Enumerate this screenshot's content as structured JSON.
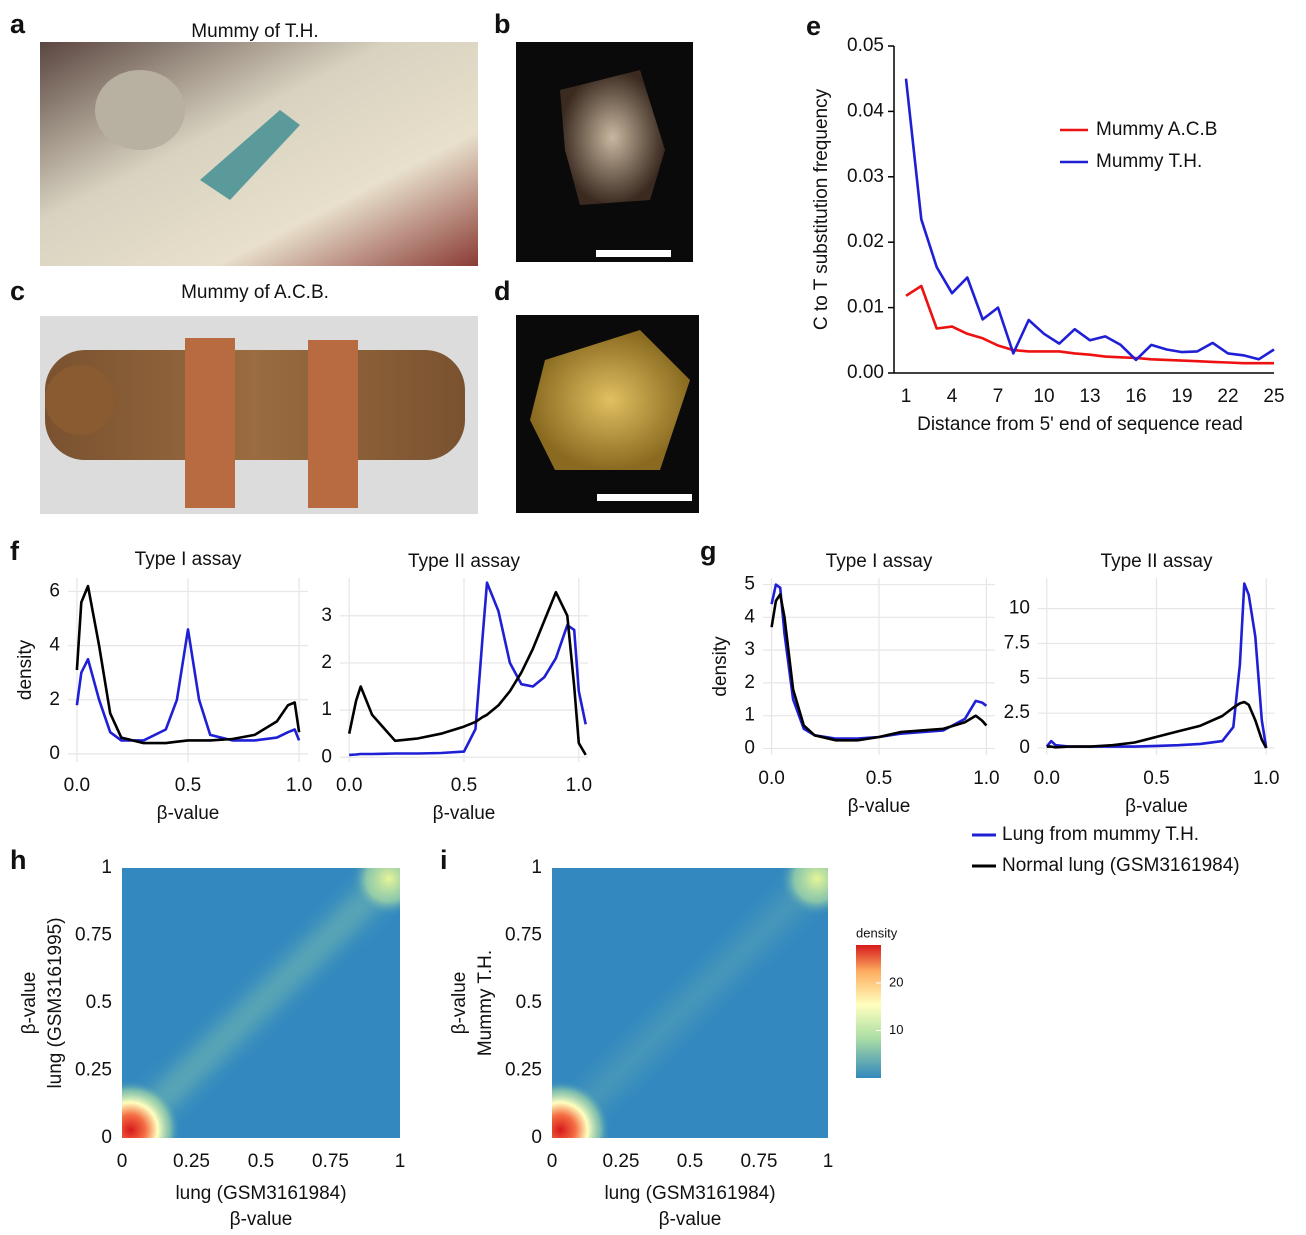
{
  "panels": {
    "a": {
      "label": "a",
      "caption": "Mummy of T.H."
    },
    "b": {
      "label": "b"
    },
    "c": {
      "label": "c",
      "caption": "Mummy of A.C.B."
    },
    "d": {
      "label": "d"
    },
    "e": {
      "label": "e"
    },
    "f": {
      "label": "f"
    },
    "g": {
      "label": "g"
    },
    "h": {
      "label": "h"
    },
    "i": {
      "label": "i"
    }
  },
  "legend": [
    {
      "name": "Lung from mummy T.H.",
      "color": "#1f1fd6"
    },
    {
      "name": "Normal lung (GSM3161984)",
      "color": "#000000"
    }
  ],
  "chart_data": [
    {
      "type": "line",
      "xlabel": "Distance from 5' end of sequence read",
      "ylabel": "C to T substitution frequency",
      "grid": false,
      "x": [
        1,
        2,
        3,
        4,
        5,
        6,
        7,
        8,
        9,
        10,
        11,
        12,
        13,
        14,
        15,
        16,
        17,
        18,
        19,
        20,
        21,
        22,
        23,
        24,
        25
      ],
      "xlim": [
        1,
        25
      ],
      "xticks": [
        1,
        4,
        7,
        10,
        13,
        16,
        19,
        22,
        25
      ],
      "ylim": [
        0,
        0.05
      ],
      "yticks": [
        {
          "value": 0,
          "label": "0.00"
        },
        {
          "value": 0.01,
          "label": "0.01"
        },
        {
          "value": 0.02,
          "label": "0.02"
        },
        {
          "value": 0.03,
          "label": "0.03"
        },
        {
          "value": 0.04,
          "label": "0.04"
        },
        {
          "value": 0.05,
          "label": "0.05"
        }
      ],
      "legend_position": "upper right",
      "series": [
        {
          "name": "Mummy A.C.B",
          "color": "#ee1111",
          "values": [
            0.0118,
            0.0133,
            0.0068,
            0.0071,
            0.006,
            0.0053,
            0.0042,
            0.0035,
            0.0033,
            0.0033,
            0.0033,
            0.003,
            0.0028,
            0.0025,
            0.0024,
            0.0023,
            0.0021,
            0.002,
            0.0019,
            0.0018,
            0.0017,
            0.0016,
            0.0015,
            0.0015,
            0.0015
          ]
        },
        {
          "name": "Mummy T.H.",
          "color": "#1f1fd6",
          "values": [
            0.045,
            0.0235,
            0.0162,
            0.0122,
            0.0146,
            0.0082,
            0.01,
            0.003,
            0.0081,
            0.006,
            0.0045,
            0.0067,
            0.005,
            0.0056,
            0.0043,
            0.002,
            0.0043,
            0.0036,
            0.0032,
            0.0033,
            0.0046,
            0.003,
            0.0027,
            0.0021,
            0.0036
          ]
        }
      ]
    },
    {
      "type": "line",
      "title": "Type I assay",
      "xlabel": "β-value",
      "ylabel": "density",
      "grid": true,
      "x": [
        0,
        0.02,
        0.05,
        0.1,
        0.15,
        0.2,
        0.3,
        0.4,
        0.45,
        0.5,
        0.55,
        0.6,
        0.7,
        0.8,
        0.9,
        0.95,
        0.98,
        1.0
      ],
      "xlim": [
        -0.04,
        1.04
      ],
      "xticks": [
        {
          "value": 0,
          "label": "0.0"
        },
        0.5,
        {
          "value": 1,
          "label": "1.0"
        }
      ],
      "ylim": [
        -0.3,
        6.5
      ],
      "yticks": [
        0,
        2,
        4,
        6
      ],
      "series": [
        {
          "color": "#1f1fd6",
          "values": [
            1.8,
            3.0,
            3.5,
            2.0,
            0.8,
            0.5,
            0.5,
            0.9,
            2.0,
            4.6,
            2.0,
            0.7,
            0.5,
            0.5,
            0.6,
            0.8,
            0.9,
            0.5
          ]
        },
        {
          "color": "#000000",
          "values": [
            3.1,
            5.6,
            6.2,
            4.0,
            1.5,
            0.6,
            0.4,
            0.4,
            0.45,
            0.5,
            0.5,
            0.5,
            0.55,
            0.7,
            1.2,
            1.8,
            1.9,
            0.8
          ]
        }
      ]
    },
    {
      "type": "line",
      "title": "Type II assay",
      "xlabel": "β-value",
      "grid": true,
      "x": [
        0,
        0.03,
        0.05,
        0.1,
        0.2,
        0.3,
        0.4,
        0.5,
        0.55,
        0.58,
        0.6,
        0.65,
        0.7,
        0.75,
        0.8,
        0.85,
        0.9,
        0.95,
        0.98,
        1.0,
        1.03
      ],
      "xlim": [
        -0.04,
        1.04
      ],
      "xticks": [
        {
          "value": 0,
          "label": "0.0"
        },
        0.5,
        {
          "value": 1,
          "label": "1.0"
        }
      ],
      "ylim": [
        -0.1,
        3.8
      ],
      "yticks": [
        0,
        1,
        2,
        3
      ],
      "series": [
        {
          "color": "#1f1fd6",
          "values": [
            0.05,
            0.06,
            0.07,
            0.07,
            0.08,
            0.08,
            0.09,
            0.12,
            0.6,
            2.5,
            3.7,
            3.1,
            2.0,
            1.55,
            1.5,
            1.7,
            2.1,
            2.8,
            2.7,
            1.4,
            0.7
          ]
        },
        {
          "color": "#000000",
          "values": [
            0.5,
            1.2,
            1.5,
            0.9,
            0.35,
            0.4,
            0.5,
            0.65,
            0.75,
            0.85,
            0.9,
            1.1,
            1.4,
            1.8,
            2.3,
            2.9,
            3.5,
            3.0,
            1.5,
            0.3,
            0.05
          ]
        }
      ]
    },
    {
      "type": "line",
      "title": "Type I assay",
      "xlabel": "β-value",
      "ylabel": "density",
      "grid": true,
      "x": [
        0,
        0.02,
        0.04,
        0.06,
        0.1,
        0.15,
        0.2,
        0.3,
        0.4,
        0.5,
        0.6,
        0.7,
        0.8,
        0.9,
        0.95,
        0.98,
        1.0
      ],
      "xlim": [
        -0.04,
        1.04
      ],
      "xticks": [
        {
          "value": 0,
          "label": "0.0"
        },
        0.5,
        {
          "value": 1,
          "label": "1.0"
        }
      ],
      "ylim": [
        -0.2,
        5.2
      ],
      "yticks": [
        0,
        1,
        2,
        3,
        4,
        5
      ],
      "series": [
        {
          "color": "#1f1fd6",
          "values": [
            4.4,
            5.0,
            4.9,
            3.5,
            1.5,
            0.6,
            0.4,
            0.3,
            0.3,
            0.35,
            0.45,
            0.5,
            0.55,
            0.9,
            1.45,
            1.4,
            1.3
          ]
        },
        {
          "color": "#000000",
          "values": [
            3.7,
            4.5,
            4.7,
            4.0,
            1.8,
            0.7,
            0.4,
            0.25,
            0.25,
            0.35,
            0.5,
            0.55,
            0.6,
            0.8,
            1.0,
            0.85,
            0.7
          ]
        }
      ]
    },
    {
      "type": "line",
      "title": "Type II assay",
      "xlabel": "β-value",
      "grid": true,
      "x": [
        0,
        0.02,
        0.04,
        0.1,
        0.2,
        0.3,
        0.4,
        0.5,
        0.6,
        0.7,
        0.8,
        0.85,
        0.88,
        0.9,
        0.92,
        0.95,
        0.98,
        1.0
      ],
      "xlim": [
        -0.04,
        1.04
      ],
      "xticks": [
        {
          "value": 0,
          "label": "0.0"
        },
        0.5,
        {
          "value": 1,
          "label": "1.0"
        }
      ],
      "ylim": [
        -0.5,
        12.2
      ],
      "yticks": [
        0,
        2.5,
        5,
        7.5,
        10
      ],
      "series": [
        {
          "color": "#1f1fd6",
          "values": [
            0.1,
            0.5,
            0.2,
            0.1,
            0.1,
            0.1,
            0.1,
            0.15,
            0.2,
            0.3,
            0.5,
            1.5,
            6,
            11.8,
            11,
            8,
            2,
            0
          ]
        },
        {
          "color": "#000000",
          "values": [
            0.1,
            0.1,
            0.05,
            0.1,
            0.1,
            0.2,
            0.4,
            0.8,
            1.2,
            1.6,
            2.3,
            2.9,
            3.2,
            3.3,
            3.1,
            2,
            0.6,
            0
          ]
        }
      ]
    },
    {
      "type": "heatmap",
      "xlabel": [
        "lung (GSM3161984)",
        "β-value"
      ],
      "ylabel": [
        "lung (GSM3161995)",
        "β-value"
      ],
      "xlim": [
        0,
        1
      ],
      "xticks": [
        0,
        0.25,
        0.5,
        0.75,
        1
      ],
      "ylim": [
        0,
        1
      ],
      "yticks": [
        0,
        0.25,
        0.5,
        0.75,
        1
      ]
    },
    {
      "type": "heatmap",
      "xlabel": [
        "lung (GSM3161984)",
        "β-value"
      ],
      "ylabel": [
        "Mummy T.H.",
        "β-value"
      ],
      "xlim": [
        0,
        1
      ],
      "xticks": [
        0,
        0.25,
        0.5,
        0.75,
        1
      ],
      "ylim": [
        0,
        1
      ],
      "yticks": [
        0,
        0.25,
        0.5,
        0.75,
        1
      ],
      "colorbar": {
        "title": "density",
        "lim": [
          0,
          28
        ],
        "ticks": [
          10,
          20
        ]
      }
    }
  ]
}
